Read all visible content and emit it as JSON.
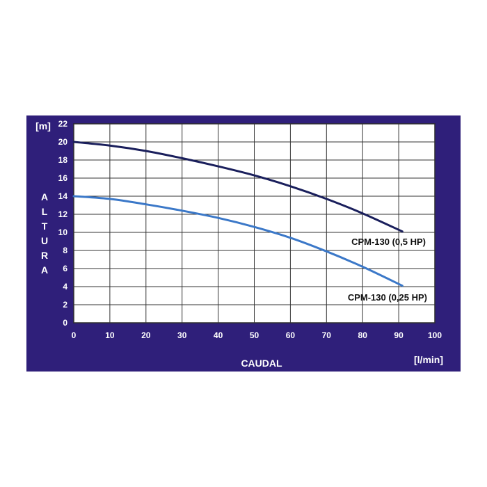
{
  "chart_data": {
    "type": "line",
    "ylabel_letters": [
      "A",
      "L",
      "T",
      "U",
      "R",
      "A"
    ],
    "yunit": "[m]",
    "xlabel": "CAUDAL",
    "xunit": "[l/min]",
    "xlim": [
      0,
      100
    ],
    "ylim": [
      0,
      22
    ],
    "xticks": [
      "0",
      "10",
      "20",
      "30",
      "40",
      "50",
      "60",
      "70",
      "80",
      "90",
      "100"
    ],
    "yticks": [
      "0",
      "2",
      "4",
      "6",
      "8",
      "10",
      "12",
      "14",
      "16",
      "18",
      "20",
      "22"
    ],
    "grid": true,
    "series": [
      {
        "name": "CPM-130 (0,5 HP)",
        "color": "#1a1f5c",
        "x": [
          0,
          10,
          20,
          30,
          40,
          50,
          60,
          70,
          80,
          91
        ],
        "y": [
          20.0,
          19.6,
          19.0,
          18.2,
          17.3,
          16.3,
          15.1,
          13.7,
          12.1,
          10.1
        ]
      },
      {
        "name": "CPM-130 (0,25 HP)",
        "color": "#3b78c8",
        "x": [
          0,
          10,
          20,
          30,
          40,
          50,
          60,
          70,
          80,
          91
        ],
        "y": [
          14.0,
          13.7,
          13.1,
          12.4,
          11.6,
          10.6,
          9.4,
          7.9,
          6.2,
          4.1
        ]
      }
    ]
  }
}
